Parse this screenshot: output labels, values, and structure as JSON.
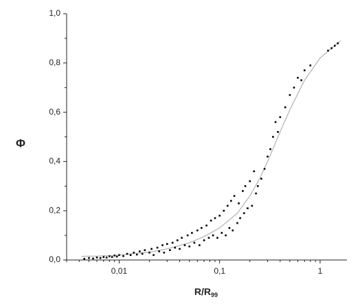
{
  "chart_data": {
    "type": "scatter",
    "ylabel": "Φ",
    "xlabel": {
      "text": "R/R",
      "subscript": "99"
    },
    "xscale": "log",
    "xlim": [
      0.003,
      1.85
    ],
    "ylim": [
      0,
      1
    ],
    "xticks": [
      {
        "value": 0.01,
        "label": "0,01"
      },
      {
        "value": 0.1,
        "label": "0,1"
      },
      {
        "value": 1,
        "label": "1"
      }
    ],
    "yticks": [
      {
        "value": 0,
        "label": "0,0"
      },
      {
        "value": 0.2,
        "label": "0,2"
      },
      {
        "value": 0.4,
        "label": "0,4"
      },
      {
        "value": 0.6,
        "label": "0,6"
      },
      {
        "value": 0.8,
        "label": "0,8"
      },
      {
        "value": 1,
        "label": "1,0"
      }
    ],
    "minor_ticks": true,
    "series": [
      {
        "type": "line",
        "color": "#b0b0b0",
        "x": [
          0.0042,
          0.006,
          0.01,
          0.02,
          0.03,
          0.05,
          0.07,
          0.1,
          0.15,
          0.2,
          0.25,
          0.3,
          0.4,
          0.5,
          0.7,
          1,
          1.3,
          1.6
        ],
        "values": [
          0.015,
          0.016,
          0.02,
          0.032,
          0.045,
          0.07,
          0.095,
          0.13,
          0.19,
          0.26,
          0.33,
          0.4,
          0.52,
          0.61,
          0.73,
          0.82,
          0.86,
          0.89
        ]
      },
      {
        "type": "markers",
        "color": "#000000",
        "x": [
          0.0045,
          0.005,
          0.0055,
          0.006,
          0.0065,
          0.007,
          0.0075,
          0.008,
          0.0085,
          0.009,
          0.0095,
          0.01,
          0.011,
          0.012,
          0.013,
          0.014,
          0.015,
          0.016,
          0.017,
          0.018,
          0.02,
          0.021,
          0.022,
          0.024,
          0.025,
          0.027,
          0.028,
          0.03,
          0.032,
          0.034,
          0.036,
          0.038,
          0.04,
          0.042,
          0.045,
          0.048,
          0.05,
          0.053,
          0.056,
          0.06,
          0.063,
          0.066,
          0.07,
          0.074,
          0.078,
          0.082,
          0.086,
          0.09,
          0.095,
          0.1,
          0.105,
          0.11,
          0.115,
          0.12,
          0.125,
          0.13,
          0.135,
          0.14,
          0.15,
          0.155,
          0.16,
          0.17,
          0.175,
          0.18,
          0.19,
          0.2,
          0.21,
          0.22,
          0.23,
          0.24,
          0.26,
          0.28,
          0.3,
          0.32,
          0.34,
          0.36,
          0.38,
          0.4,
          0.45,
          0.5,
          0.55,
          0.6,
          0.65,
          0.7,
          0.8,
          1.2,
          1.3,
          1.4,
          1.5
        ],
        "values": [
          0.005,
          0.008,
          0.006,
          0.01,
          0.008,
          0.012,
          0.01,
          0.015,
          0.012,
          0.018,
          0.014,
          0.02,
          0.016,
          0.025,
          0.02,
          0.03,
          0.022,
          0.035,
          0.025,
          0.04,
          0.03,
          0.045,
          0.02,
          0.05,
          0.035,
          0.06,
          0.03,
          0.065,
          0.04,
          0.07,
          0.05,
          0.08,
          0.045,
          0.09,
          0.06,
          0.1,
          0.055,
          0.11,
          0.07,
          0.12,
          0.06,
          0.13,
          0.08,
          0.14,
          0.09,
          0.16,
          0.1,
          0.17,
          0.09,
          0.18,
          0.11,
          0.2,
          0.1,
          0.22,
          0.13,
          0.24,
          0.12,
          0.26,
          0.15,
          0.23,
          0.17,
          0.28,
          0.19,
          0.3,
          0.21,
          0.32,
          0.22,
          0.36,
          0.27,
          0.3,
          0.33,
          0.37,
          0.42,
          0.45,
          0.5,
          0.56,
          0.52,
          0.58,
          0.62,
          0.67,
          0.7,
          0.74,
          0.73,
          0.77,
          0.79,
          0.85,
          0.86,
          0.87,
          0.88
        ]
      }
    ]
  }
}
